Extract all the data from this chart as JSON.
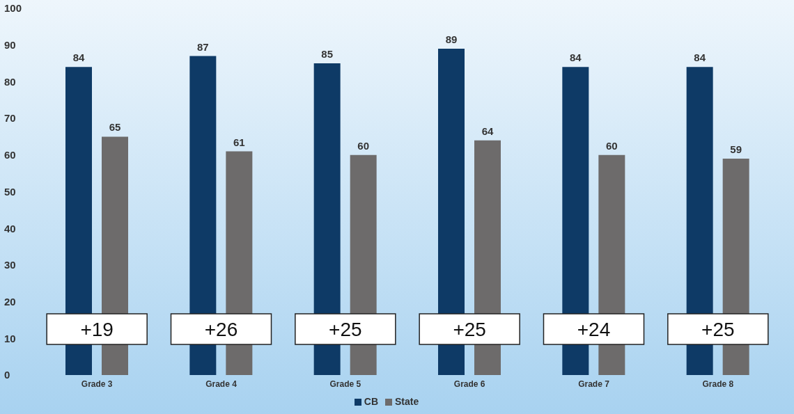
{
  "chart_data": {
    "type": "bar",
    "categories": [
      "Grade 3",
      "Grade 4",
      "Grade 5",
      "Grade 6",
      "Grade 7",
      "Grade 8"
    ],
    "series": [
      {
        "name": "CB",
        "color": "#0e3a66",
        "values": [
          84,
          87,
          85,
          89,
          84,
          84
        ]
      },
      {
        "name": "State",
        "color": "#6d6b6b",
        "values": [
          65,
          61,
          60,
          64,
          60,
          59
        ]
      }
    ],
    "ylim": [
      0,
      100
    ],
    "yticks": [
      0,
      10,
      20,
      30,
      40,
      50,
      60,
      70,
      80,
      90,
      100
    ],
    "grid": false,
    "legend": "bottom",
    "data_labels": true,
    "annotations": [
      "+19",
      "+26",
      "+25",
      "+25",
      "+24",
      "+25"
    ]
  }
}
